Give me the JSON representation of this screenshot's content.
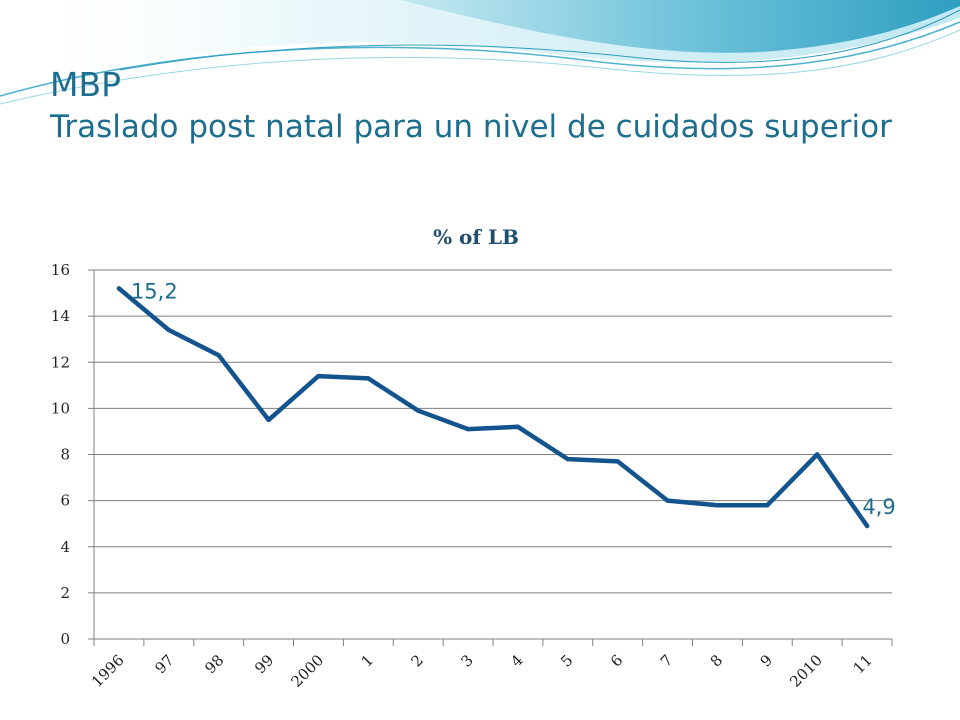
{
  "slide": {
    "title_line1": "MBP",
    "title_line2": "Traslado post natal para un nivel de cuidados superior"
  },
  "colors": {
    "title": "#1d6e8e",
    "series_line": "#13548f",
    "gridline": "#7f7f7f",
    "wave_light": "#b7e3ef",
    "wave_dark": "#3aa6c4"
  },
  "chart_data": {
    "type": "line",
    "title": "% of LB",
    "xlabel": "",
    "ylabel": "",
    "categories": [
      "1996",
      "97",
      "98",
      "99",
      "2000",
      "1",
      "2",
      "3",
      "4",
      "5",
      "6",
      "7",
      "8",
      "9",
      "2010",
      "11"
    ],
    "series": [
      {
        "values": [
          15.2,
          13.4,
          12.3,
          9.5,
          11.4,
          11.3,
          9.9,
          9.1,
          9.2,
          7.8,
          7.7,
          6.0,
          5.8,
          5.8,
          8.0,
          4.9
        ]
      }
    ],
    "data_labels": [
      {
        "index": 0,
        "text": "15,2"
      },
      {
        "index": 15,
        "text": "4,9"
      }
    ],
    "ylim": [
      0,
      16
    ],
    "yticks": [
      0,
      2,
      4,
      6,
      8,
      10,
      12,
      14,
      16
    ],
    "grid": true,
    "legend": "none"
  }
}
